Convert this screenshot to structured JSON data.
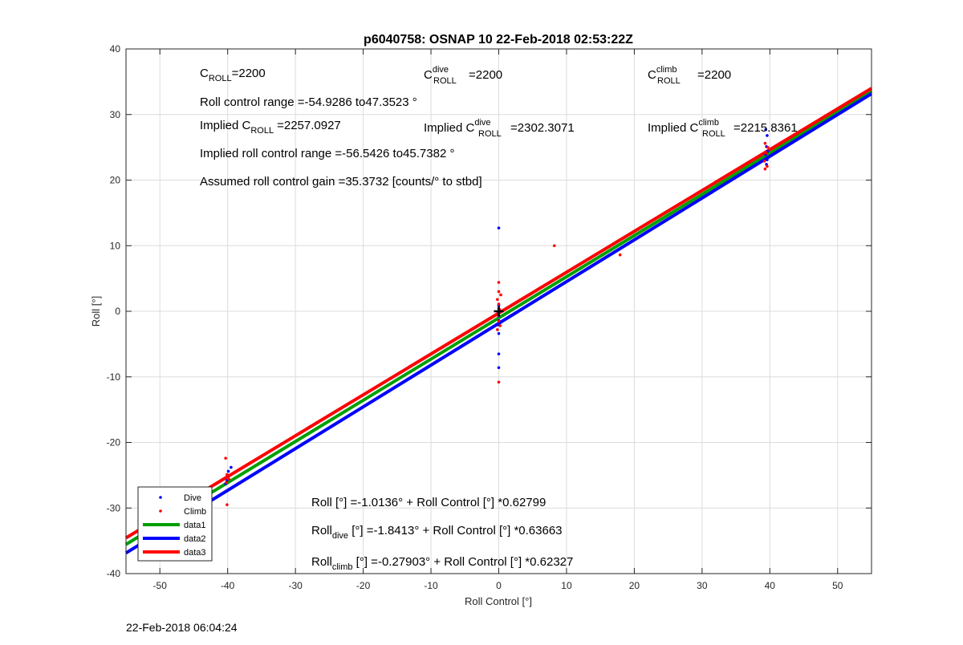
{
  "chart_data": {
    "type": "scatter",
    "title": "p6040758: OSNAP 10 22-Feb-2018 02:53:22Z",
    "xlabel": "Roll Control [°]",
    "ylabel": "Roll [°]",
    "xlim": [
      -55,
      55
    ],
    "ylim": [
      -40,
      40
    ],
    "xticks": [
      -50,
      -40,
      -30,
      -20,
      -10,
      0,
      10,
      20,
      30,
      40,
      50
    ],
    "yticks": [
      -40,
      -30,
      -20,
      -10,
      0,
      10,
      20,
      30,
      40
    ],
    "grid": true,
    "legend_position": "bottom-left",
    "series": [
      {
        "name": "Dive",
        "kind": "points",
        "color": "#0000ff",
        "points": [
          [
            -39.5,
            -23.8
          ],
          [
            -39.9,
            -24.4
          ],
          [
            -40.1,
            -25.8
          ],
          [
            -40.3,
            -26.3
          ],
          [
            0,
            12.7
          ],
          [
            0,
            0.9
          ],
          [
            0,
            0.4
          ],
          [
            0,
            -0.2
          ],
          [
            0,
            -0.7
          ],
          [
            0,
            -1.4
          ],
          [
            0,
            -2.1
          ],
          [
            0,
            -3.4
          ],
          [
            0,
            -6.5
          ],
          [
            0,
            -8.6
          ],
          [
            39.4,
            27.7
          ],
          [
            39.6,
            26.8
          ],
          [
            39.5,
            25.1
          ],
          [
            39.7,
            24.4
          ],
          [
            39.4,
            23.9
          ],
          [
            39.6,
            23.1
          ],
          [
            39.5,
            22.4
          ]
        ]
      },
      {
        "name": "Climb",
        "kind": "points",
        "color": "#ff0000",
        "points": [
          [
            -40.3,
            -22.4
          ],
          [
            -40.1,
            -24.9
          ],
          [
            -39.8,
            -25.6
          ],
          [
            -40.2,
            -26.1
          ],
          [
            -40.1,
            -29.5
          ],
          [
            0,
            4.4
          ],
          [
            0,
            3.0
          ],
          [
            0.3,
            2.5
          ],
          [
            -0.2,
            1.8
          ],
          [
            0,
            1.1
          ],
          [
            0.1,
            0.3
          ],
          [
            -0.1,
            -0.6
          ],
          [
            0,
            -1.5
          ],
          [
            0.2,
            -2.2
          ],
          [
            -0.2,
            -2.8
          ],
          [
            0,
            -10.8
          ],
          [
            8.2,
            10.0
          ],
          [
            17.9,
            8.6
          ],
          [
            39.3,
            25.6
          ],
          [
            39.7,
            25.0
          ],
          [
            39.5,
            24.1
          ],
          [
            39.2,
            22.9
          ],
          [
            39.6,
            22.1
          ],
          [
            39.3,
            21.7
          ]
        ]
      },
      {
        "name": "data1",
        "kind": "line",
        "color": "#00a000",
        "intercept": -1.0136,
        "slope": 0.62799
      },
      {
        "name": "data2",
        "kind": "line",
        "color": "#0000ff",
        "intercept": -1.8413,
        "slope": 0.63663
      },
      {
        "name": "data3",
        "kind": "line",
        "color": "#ff0000",
        "intercept": -0.27903,
        "slope": 0.62327
      }
    ],
    "marker": {
      "x": 0,
      "y": 0,
      "color": "#000000",
      "symbol": "+"
    },
    "annotations": {
      "c_roll": {
        "base": "C",
        "sub": "ROLL",
        "value": "=2200"
      },
      "c_roll_dive": {
        "base": "C",
        "sup": "dive",
        "sub": "ROLL",
        "value": "=2200"
      },
      "c_roll_climb": {
        "base": "C",
        "sup": "climb",
        "sub": "ROLL",
        "value": "=2200"
      },
      "roll_range": "Roll control range =-54.9286 to47.3523 °",
      "implied_c_roll": {
        "prefix": "Implied C",
        "sub": "ROLL",
        "value": "=2257.0927"
      },
      "implied_c_roll_dive": {
        "prefix": "Implied C",
        "sup": "dive",
        "sub": "ROLL",
        "value": "=2302.3071"
      },
      "implied_c_roll_climb": {
        "prefix": "Implied C",
        "sup": "climb",
        "sub": "ROLL",
        "value": "=2215.8361"
      },
      "implied_range": "Implied roll control range =-56.5426 to45.7382 °",
      "gain": "Assumed roll control gain =35.3732 [counts/° to stbd]",
      "fit_all": "Roll [°] =-1.0136° + Roll Control [°] *0.62799",
      "fit_dive": {
        "base": "Roll",
        "sub": "dive",
        "rest": " [°] =-1.8413° + Roll Control [°] *0.63663"
      },
      "fit_climb": {
        "base": "Roll",
        "sub": "climb",
        "rest": " [°] =-0.27903° + Roll Control [°] *0.62327"
      }
    }
  },
  "footer_timestamp": "22-Feb-2018 06:04:24"
}
